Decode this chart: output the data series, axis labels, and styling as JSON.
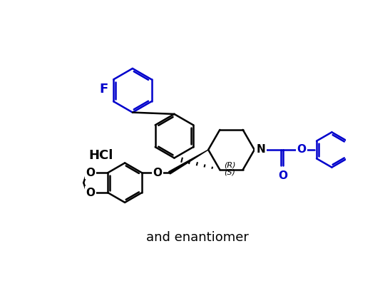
{
  "background_color": "#ffffff",
  "black_color": "#000000",
  "blue_color": "#0000cc",
  "line_width": 1.8,
  "hcl_text": "HCl",
  "rs_text_r": "(R)",
  "rs_text_s": "(S)",
  "enantiomer_text": "and enantiomer",
  "f_text": "F",
  "n_text": "N",
  "o_text": "O",
  "figsize": [
    5.4,
    4.15
  ],
  "dpi": 100
}
